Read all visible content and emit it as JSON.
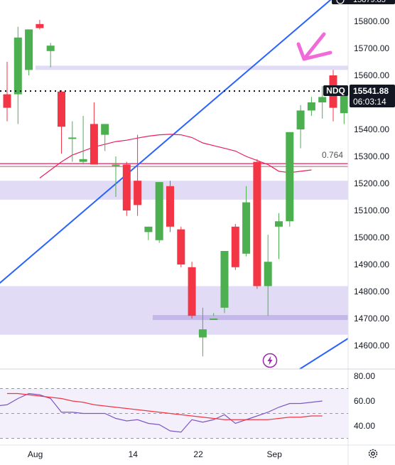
{
  "chart_data": {
    "type": "candlestick",
    "symbol": "NDQ",
    "last_price": "15541.88",
    "countdown": "06:03:14",
    "top_cut_label": "15879.85",
    "fib_label": "0.764",
    "price_ticks": [
      "15800.00",
      "15700.00",
      "15600.00",
      "15500.00",
      "15400.00",
      "15300.00",
      "15200.00",
      "15100.00",
      "15000.00",
      "14900.00",
      "14800.00",
      "14700.00",
      "14600.00"
    ],
    "price_tick_values": [
      15800,
      15700,
      15600,
      15500,
      15400,
      15300,
      15200,
      15100,
      15000,
      14900,
      14800,
      14700,
      14600
    ],
    "rsi_ticks": [
      "80.00",
      "60.00",
      "40.00"
    ],
    "rsi_tick_values": [
      80,
      60,
      40
    ],
    "date_labels": [
      {
        "label": "Aug",
        "bar": 2
      },
      {
        "label": "14",
        "bar": 11
      },
      {
        "label": "22",
        "bar": 17
      },
      {
        "label": "Sep",
        "bar": 24
      }
    ],
    "candles": [
      {
        "o": 15530,
        "h": 15650,
        "l": 15430,
        "c": 15480
      },
      {
        "o": 15530,
        "h": 15780,
        "l": 15420,
        "c": 15740
      },
      {
        "o": 15620,
        "h": 15770,
        "l": 15600,
        "c": 15770
      },
      {
        "o": 15790,
        "h": 15805,
        "l": 15770,
        "c": 15775
      },
      {
        "o": 15690,
        "h": 15720,
        "l": 15630,
        "c": 15710
      },
      {
        "o": 15540,
        "h": 15545,
        "l": 15310,
        "c": 15410
      },
      {
        "o": 15370,
        "h": 15430,
        "l": 15280,
        "c": 15370
      },
      {
        "o": 15280,
        "h": 15450,
        "l": 15270,
        "c": 15290
      },
      {
        "o": 15420,
        "h": 15500,
        "l": 15270,
        "c": 15270
      },
      {
        "o": 15380,
        "h": 15415,
        "l": 15320,
        "c": 15420
      },
      {
        "o": 15270,
        "h": 15300,
        "l": 15150,
        "c": 15270
      },
      {
        "o": 15270,
        "h": 15280,
        "l": 15080,
        "c": 15100
      },
      {
        "o": 15210,
        "h": 15380,
        "l": 15080,
        "c": 15120
      },
      {
        "o": 15020,
        "h": 15040,
        "l": 14990,
        "c": 15040
      },
      {
        "o": 14990,
        "h": 15205,
        "l": 14980,
        "c": 15205
      },
      {
        "o": 15190,
        "h": 15210,
        "l": 15020,
        "c": 15040
      },
      {
        "o": 15030,
        "h": 15040,
        "l": 14890,
        "c": 14900
      },
      {
        "o": 14890,
        "h": 14910,
        "l": 14700,
        "c": 14710
      },
      {
        "o": 14630,
        "h": 14740,
        "l": 14560,
        "c": 14660
      },
      {
        "o": 14700,
        "h": 14720,
        "l": 14710,
        "c": 14700
      },
      {
        "o": 14740,
        "h": 14950,
        "l": 14720,
        "c": 14950
      },
      {
        "o": 15040,
        "h": 15050,
        "l": 14880,
        "c": 14890
      },
      {
        "o": 14940,
        "h": 15190,
        "l": 14930,
        "c": 15130
      },
      {
        "o": 15280,
        "h": 15290,
        "l": 14810,
        "c": 14820
      },
      {
        "o": 14820,
        "h": 15010,
        "l": 14710,
        "c": 14910
      },
      {
        "o": 15040,
        "h": 15090,
        "l": 14920,
        "c": 15060
      },
      {
        "o": 15060,
        "h": 15390,
        "l": 15040,
        "c": 15390
      },
      {
        "o": 15400,
        "h": 15490,
        "l": 15330,
        "c": 15470
      },
      {
        "o": 15470,
        "h": 15520,
        "l": 15450,
        "c": 15500
      },
      {
        "o": 15500,
        "h": 15560,
        "l": 15440,
        "c": 15520
      },
      {
        "o": 15600,
        "h": 15620,
        "l": 15430,
        "c": 15480
      },
      {
        "o": 15460,
        "h": 15560,
        "l": 15420,
        "c": 15550
      }
    ],
    "ma_line": [
      15220,
      15250,
      15280,
      15305,
      15320,
      15335,
      15345,
      15355,
      15360,
      15368,
      15375,
      15380,
      15382,
      15380,
      15370,
      15350,
      15340,
      15330,
      15320,
      15300,
      15285,
      15270,
      15245,
      15240,
      15245,
      15250
    ],
    "fib_line_value": 15268,
    "support_line_value": 14705,
    "resistance_line_value": 15628,
    "zones": [
      {
        "from": 15140,
        "to": 15210
      },
      {
        "from": 14640,
        "to": 14820
      }
    ],
    "trendline": {
      "from": {
        "bar": -1,
        "price": 14820
      },
      "to": {
        "bar": 30.5,
        "price": 15905
      }
    },
    "trendline2": {
      "from": {
        "bar": 31,
        "price": 14580
      },
      "to": {
        "bar": 36,
        "price": 14630
      }
    },
    "rsi": {
      "line": [
        56,
        57,
        62,
        66,
        65,
        62,
        51,
        51,
        50,
        50,
        50,
        46,
        44,
        45,
        42,
        41,
        36,
        35,
        45,
        43,
        45,
        49,
        42,
        45,
        48,
        51,
        55,
        58,
        58,
        59,
        60
      ],
      "signal": [
        66,
        66,
        65,
        64,
        63,
        62,
        60,
        59,
        57,
        56,
        55,
        54,
        53,
        52,
        51,
        50,
        49,
        48,
        47,
        46,
        45,
        45,
        45,
        45,
        45,
        46,
        47,
        47,
        48,
        48
      ],
      "upper": 70,
      "mid": 50,
      "lower": 30
    },
    "colors": {
      "up": "#4caf50",
      "down": "#f23645",
      "trend": "#2962ff",
      "ma": "#e91e63",
      "zone": "#e1dbf5",
      "zone_line": "#c4b8ea",
      "rsi_line": "#7e57c2",
      "rsi_signal": "#f23645",
      "arrow": "#f06bd8"
    }
  }
}
